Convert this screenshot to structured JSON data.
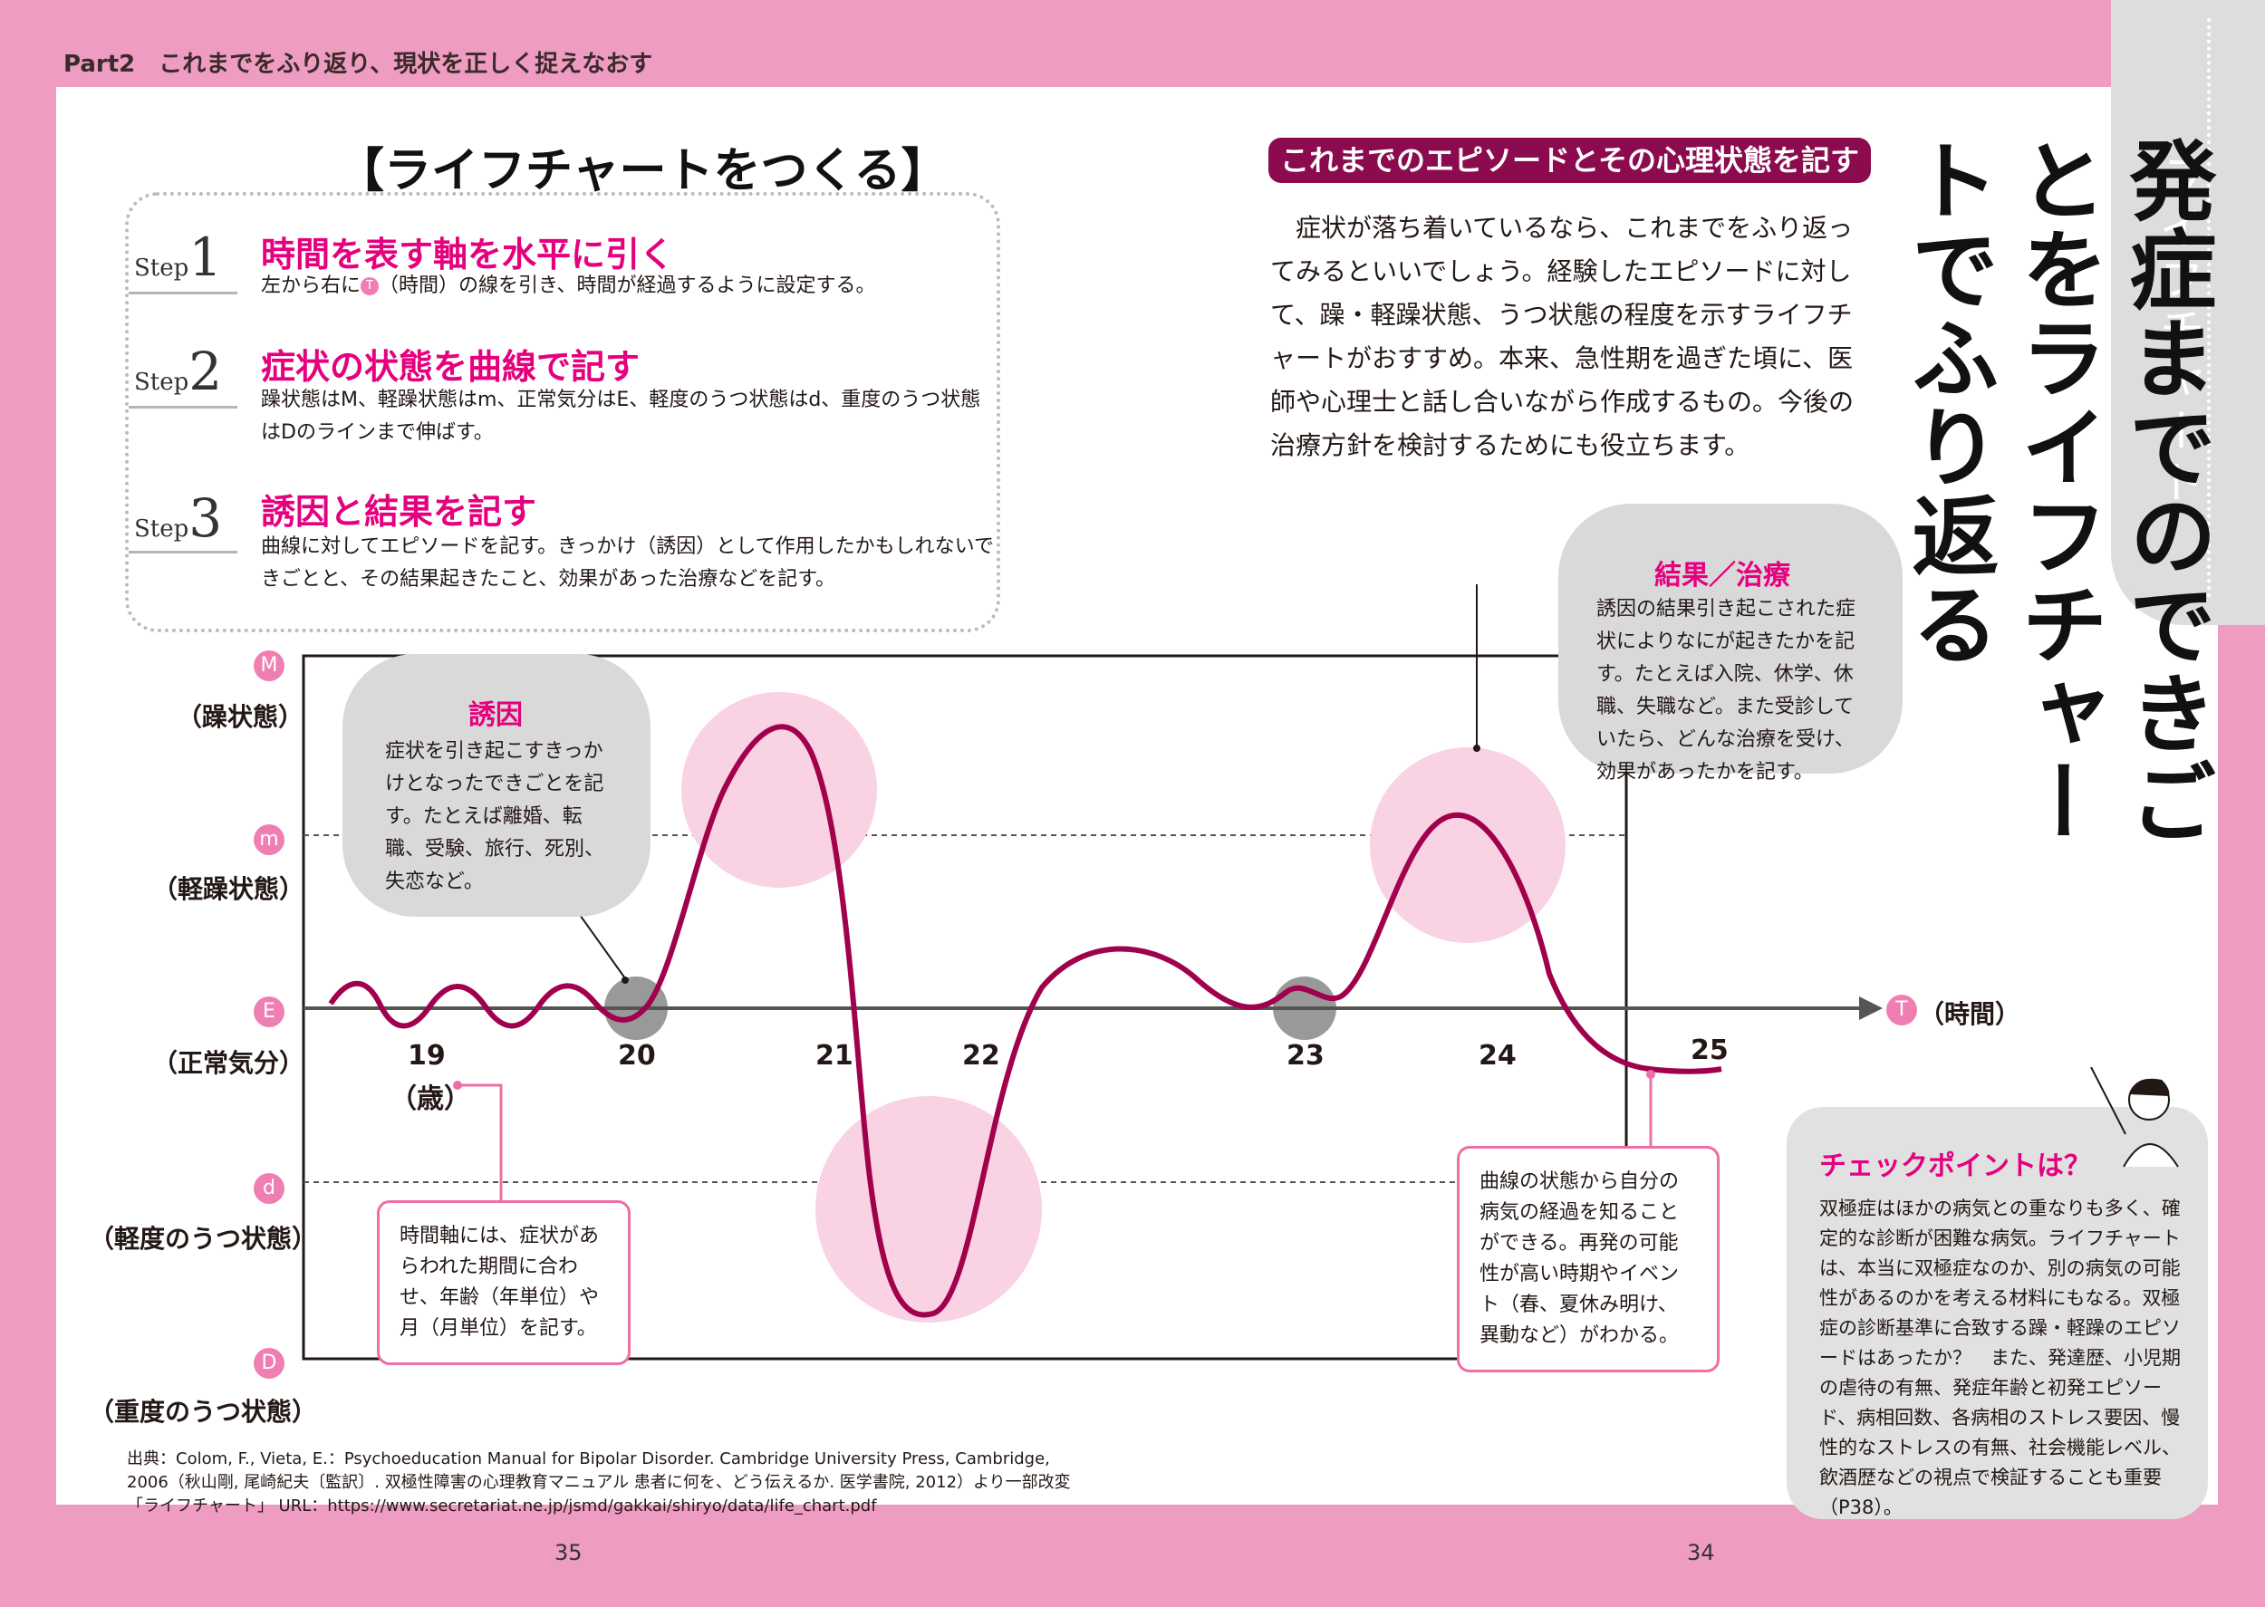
{
  "header": {
    "text": "Part2　これまでをふり返り、現状を正しく捉えなおす"
  },
  "side_tab": {
    "label": "ライフチャート"
  },
  "main_title": "発症までのできごとをライフチャートでふり返る",
  "steps_section": {
    "heading": "【ライフチャートをつくる】",
    "steps": [
      {
        "label": "Step",
        "number": "1",
        "title": "時間を表す軸を水平に引く",
        "body_pre": "左から右に",
        "body_circle": "T",
        "body_post": "（時間）の線を引き、時間が経過するように設定する。"
      },
      {
        "label": "Step",
        "number": "2",
        "title": "症状の状態を曲線で記す",
        "body": "躁状態はM、軽躁状態はm、正常気分はE、軽度のうつ状態はd、重度のうつ状態はDのラインまで伸ばす。"
      },
      {
        "label": "Step",
        "number": "3",
        "title": "誘因と結果を記す",
        "body": "曲線に対してエピソードを記す。きっかけ（誘因）として作用したかもしれないできごとと、その結果起きたこと、効果があった治療などを記す。"
      }
    ]
  },
  "episode_section": {
    "band": "これまでのエピソードとその心理状態を記す",
    "text": "症状が落ち着いているなら、これまでをふり返ってみるといいでしょう。経験したエピソードに対して、躁・軽躁状態、うつ状態の程度を示すライフチャートがおすすめ。本来、急性期を過ぎた頃に、医師や心理士と話し合いながら作成するもの。今後の治療方針を検討するためにも役立ちます。"
  },
  "clouds": {
    "trigger": {
      "title": "誘因",
      "body": "症状を引き起こすきっかけとなったできごとを記す。たとえば離婚、転職、受験、旅行、死別、失恋など。"
    },
    "result": {
      "title": "結果／治療",
      "body": "誘因の結果引き起こされた症状によりなにが起きたかを記す。たとえば入院、休学、休職、失職など。また受診していたら、どんな治療を受け、効果があったかを記す。"
    }
  },
  "chart_data": {
    "type": "line",
    "y_levels": [
      {
        "code": "M",
        "label": "（躁状態）"
      },
      {
        "code": "m",
        "label": "（軽躁状態）"
      },
      {
        "code": "E",
        "label": "（正常気分）"
      },
      {
        "code": "d",
        "label": "（軽度のうつ状態）"
      },
      {
        "code": "D",
        "label": "（重度のうつ状態）"
      }
    ],
    "x_axis_circle": "T",
    "x_axis_label": "（時間）",
    "x_ticks": [
      "19",
      "20",
      "21",
      "22",
      "23",
      "24",
      "25"
    ],
    "x_unit": "（歳）",
    "curve_color": "#a0004c"
  },
  "notes": {
    "time_axis": "時間軸には、症状があらわれた期間に合わせ、年齢（年単位）や月（月単位）を記す。",
    "curve": "曲線の状態から自分の病気の経過を知ることができる。再発の可能性が高い時期やイベント（春、夏休み明け、異動など）がわかる。"
  },
  "checkpoint": {
    "title": "チェックポイントは？",
    "body": "双極症はほかの病気との重なりも多く、確定的な診断が困難な病気。ライフチャートは、本当に双極症なのか、別の病気の可能性があるのかを考える材料にもなる。双極症の診断基準に合致する躁・軽躁のエピソードはあったか？　また、発達歴、小児期の虐待の有無、発症年齢と初発エピソード、病相回数、各病相のストレス要因、慢性的なストレスの有無、社会機能レベル、飲酒歴などの視点で検証することも重要（P38）。"
  },
  "source": "出典：Colom, F., Vieta, E.：Psychoeducation Manual for Bipolar Disorder. Cambridge University Press, Cambridge, 2006（秋山剛, 尾崎紀夫〔監訳〕. 双極性障害の心理教育マニュアル 患者に何を、どう伝えるか. 医学書院, 2012）より一部改変「ライフチャート」 URL：https://www.secretariat.ne.jp/jsmd/gakkai/shiryo/data/life_chart.pdf",
  "page_numbers": {
    "left": "35",
    "right": "34"
  }
}
